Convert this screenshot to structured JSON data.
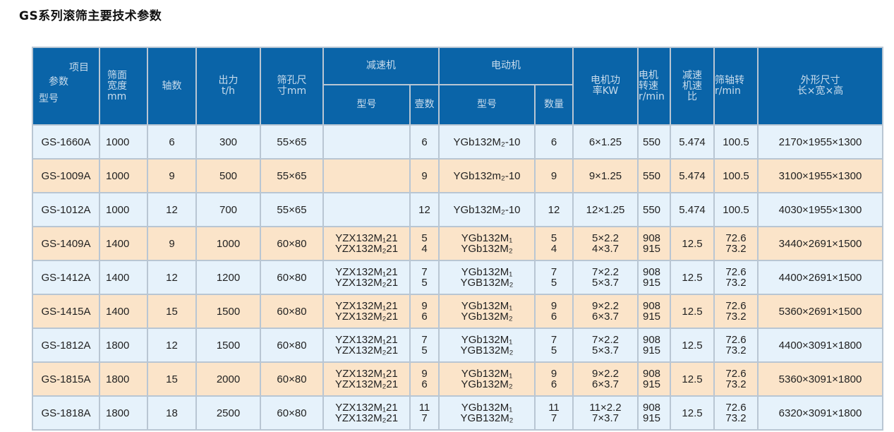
{
  "title": "GS系列滚筛主要技术参数",
  "colors": {
    "header_bg": "#0a64a8",
    "row_odd": "#e6f2fb",
    "row_even": "#fbe4c9"
  },
  "header": {
    "corner": {
      "item": "项目",
      "param": "参数",
      "model": "型号"
    },
    "width": "筛面\n宽度\nmm",
    "shafts": "轴数",
    "output": "出力\nt/h",
    "hole": "筛孔尺\n寸mm",
    "reducer": "减速机",
    "reducer_model": "型号",
    "reducer_count": "壹数",
    "motor": "电动机",
    "motor_model": "型号",
    "motor_count": "数量",
    "power": "电机功\n率KW",
    "speed": "电机\n转速\nr/min",
    "ratio": "减速\n机速\n比",
    "shaft_speed": "筛轴转\nr/min",
    "dims": "外形尺寸\n长×宽×高"
  },
  "rows": [
    [
      "GS-1660A",
      "1000",
      "6",
      "300",
      "55×65",
      "",
      "6",
      "YGb132M₂-10",
      "6",
      "6×1.25",
      "550",
      "5.474",
      "100.5",
      "2170×1955×1300"
    ],
    [
      "GS-1009A",
      "1000",
      "9",
      "500",
      "55×65",
      "",
      "9",
      "YGb132m₂-10",
      "9",
      "9×1.25",
      "550",
      "5.474",
      "100.5",
      "3100×1955×1300"
    ],
    [
      "GS-1012A",
      "1000",
      "12",
      "700",
      "55×65",
      "",
      "12",
      "YGb132M₂-10",
      "12",
      "12×1.25",
      "550",
      "5.474",
      "100.5",
      "4030×1955×1300"
    ],
    [
      "GS-1409A",
      "1400",
      "9",
      "1000",
      "60×80",
      "YZX132M₁21\nYZX132M₂21",
      "5\n4",
      "YGb132M₁\nYGb132M₂",
      "5\n4",
      "5×2.2\n4×3.7",
      "908\n915",
      "12.5",
      "72.6\n73.2",
      "3440×2691×1500"
    ],
    [
      "GS-1412A",
      "1400",
      "12",
      "1200",
      "60×80",
      "YZX132M₁21\nYZX132M₂21",
      "7\n5",
      "YGb132M₁\nYGB132M₂",
      "7\n5",
      "7×2.2\n5×3.7",
      "908\n915",
      "12.5",
      "72.6\n73.2",
      "4400×2691×1500"
    ],
    [
      "GS-1415A",
      "1400",
      "15",
      "1500",
      "60×80",
      "YZX132M₁21\nYZX132M₂21",
      "9\n6",
      "YGb132M₁\nYGb132M₂",
      "9\n6",
      "9×2.2\n6×3.7",
      "908\n915",
      "12.5",
      "72.6\n73.2",
      "5360×2691×1500"
    ],
    [
      "GS-1812A",
      "1800",
      "12",
      "1500",
      "60×80",
      "YZX132M₁21\nYZX132M₂21",
      "7\n5",
      "YGb132M₁\nYGB132M₂",
      "7\n5",
      "7×2.2\n5×3.7",
      "908\n915",
      "12.5",
      "72.6\n73.2",
      "4400×3091×1800"
    ],
    [
      "GS-1815A",
      "1800",
      "15",
      "2000",
      "60×80",
      "YZX132M₁21\nYZX132M₂21",
      "9\n6",
      "YGb132M₁\nYGb132M₂",
      "9\n6",
      "9×2.2\n6×3.7",
      "908\n915",
      "12.5",
      "72.6\n73.2",
      "5360×3091×1800"
    ],
    [
      "GS-1818A",
      "1800",
      "18",
      "2500",
      "60×80",
      "YZX132M₁21\nYZX132M₂21",
      "11\n7",
      "YGb132M₁\nYGB132M₂",
      "11\n7",
      "11×2.2\n7×3.7",
      "908\n915",
      "12.5",
      "72.6\n73.2",
      "6320×3091×1800"
    ]
  ]
}
